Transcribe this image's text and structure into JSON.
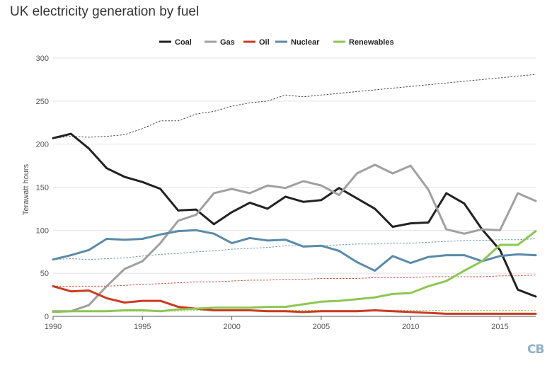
{
  "chart_data": {
    "type": "line",
    "title": "UK electricity generation by fuel",
    "ylabel": "Terawatt hours",
    "xlabel": "",
    "xlim": [
      1990,
      2017
    ],
    "ylim": [
      0,
      300
    ],
    "xticks": [
      1990,
      1995,
      2000,
      2005,
      2010,
      2015
    ],
    "yticks": [
      0,
      50,
      100,
      150,
      200,
      250,
      300
    ],
    "grid": true,
    "legend_position": "top-center",
    "x": [
      1990,
      1991,
      1992,
      1993,
      1994,
      1995,
      1996,
      1997,
      1998,
      1999,
      2000,
      2001,
      2002,
      2003,
      2004,
      2005,
      2006,
      2007,
      2008,
      2009,
      2010,
      2011,
      2012,
      2013,
      2014,
      2015,
      2016,
      2017
    ],
    "series": [
      {
        "name": "Coal",
        "color": "#222222",
        "values": [
          207,
          212,
          195,
          172,
          162,
          156,
          148,
          123,
          124,
          107,
          121,
          132,
          125,
          139,
          133,
          135,
          149,
          137,
          125,
          104,
          108,
          109,
          143,
          131,
          101,
          77,
          31,
          23
        ]
      },
      {
        "name": "Gas",
        "color": "#a0a0a0",
        "values": [
          6,
          6,
          13,
          35,
          55,
          64,
          85,
          111,
          118,
          143,
          148,
          143,
          152,
          149,
          157,
          152,
          141,
          166,
          176,
          166,
          175,
          147,
          101,
          96,
          101,
          100,
          143,
          134
        ]
      },
      {
        "name": "Oil",
        "color": "#cc3a22",
        "values": [
          35,
          29,
          30,
          21,
          16,
          18,
          18,
          11,
          9,
          7,
          7,
          7,
          6,
          6,
          5,
          6,
          6,
          6,
          7,
          6,
          5,
          4,
          3,
          3,
          3,
          3,
          3,
          3
        ]
      },
      {
        "name": "Nuclear",
        "color": "#5b8aa8",
        "values": [
          66,
          71,
          77,
          90,
          89,
          90,
          95,
          99,
          100,
          96,
          85,
          91,
          88,
          89,
          81,
          82,
          76,
          63,
          53,
          70,
          62,
          69,
          71,
          71,
          64,
          70,
          72,
          71
        ]
      },
      {
        "name": "Renewables",
        "color": "#8cc751",
        "values": [
          5,
          6,
          6,
          6,
          7,
          7,
          6,
          8,
          9,
          10,
          10,
          10,
          11,
          11,
          14,
          17,
          18,
          20,
          22,
          26,
          27,
          35,
          41,
          53,
          64,
          83,
          83,
          99
        ]
      }
    ],
    "reference_series": [
      {
        "name": "Total",
        "color": "#333333",
        "values": [
          207,
          209,
          208,
          209,
          211,
          218,
          227,
          227,
          235,
          238,
          244,
          248,
          250,
          257,
          255,
          257,
          259,
          261,
          263,
          265,
          267,
          269,
          271,
          273,
          275,
          277,
          279,
          281
        ]
      },
      {
        "name": "Nuclear trend",
        "color": "#5b8aa8",
        "values": [
          66,
          67,
          66,
          67,
          68,
          70,
          72,
          73,
          75,
          76,
          78,
          79,
          80,
          82,
          82,
          82,
          83,
          84,
          84,
          85,
          85,
          86,
          87,
          88,
          88,
          89,
          89,
          90
        ]
      },
      {
        "name": "Oil trend",
        "color": "#cc3a22",
        "values": [
          35,
          35,
          35,
          35,
          36,
          37,
          38,
          39,
          40,
          40,
          41,
          42,
          42,
          43,
          43,
          44,
          44,
          44,
          45,
          45,
          45,
          46,
          46,
          46,
          46,
          47,
          47,
          48
        ]
      },
      {
        "name": "Renewables trend",
        "color": "#8cc751",
        "values": [
          6,
          6,
          6,
          6,
          6,
          6,
          6,
          6,
          7,
          7,
          7,
          7,
          7,
          7,
          7,
          7,
          7,
          7,
          7,
          7,
          7,
          7,
          7,
          7,
          7,
          7,
          7,
          7
        ]
      }
    ]
  },
  "branding": {
    "logo_text": "CB"
  }
}
